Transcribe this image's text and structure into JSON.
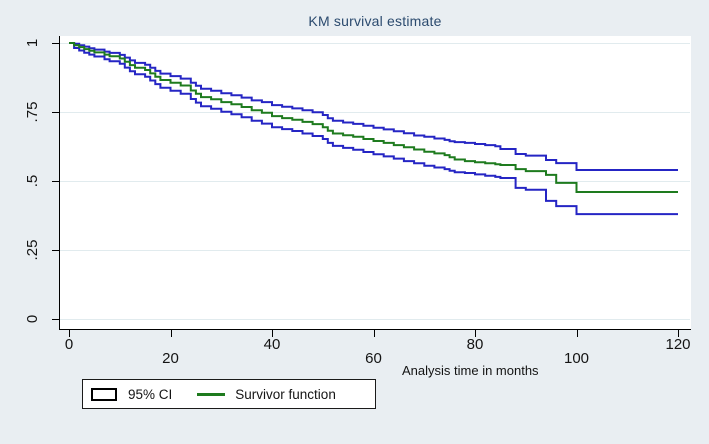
{
  "figure": {
    "background_color": "#e9eef2",
    "plot_background": "#ffffff",
    "gridline_color": "#e1ebee",
    "axis_color": "#000000",
    "title_color": "#2b4a6e"
  },
  "chart_data": {
    "type": "line",
    "subtype": "kaplan-meier-step",
    "title": "KM survival estimate",
    "xlabel": "Analysis time in months",
    "ylabel": "",
    "xlim": [
      0,
      120
    ],
    "ylim": [
      0,
      1
    ],
    "grid": true,
    "legend_position": "bottom-left",
    "x_ticks": [
      0,
      20,
      40,
      60,
      80,
      100,
      120
    ],
    "y_ticks_labels": [
      "0",
      ".25",
      ".5",
      ".75",
      "1"
    ],
    "y_tick_values": [
      0,
      0.25,
      0.5,
      0.75,
      1
    ],
    "x": [
      0,
      1,
      2,
      3,
      4,
      5,
      7,
      8,
      10,
      11,
      12,
      13,
      15,
      16,
      17,
      18,
      20,
      22,
      24,
      25,
      26,
      28,
      30,
      32,
      34,
      36,
      38,
      40,
      42,
      44,
      46,
      48,
      50,
      51,
      52,
      54,
      56,
      58,
      60,
      62,
      64,
      66,
      68,
      70,
      72,
      74,
      75,
      76,
      78,
      80,
      82,
      84,
      85,
      88,
      90,
      94,
      96,
      100,
      120
    ],
    "series": [
      {
        "name": "95% CI upper bound",
        "color": "#2525c4",
        "values": [
          1.0,
          0.997,
          0.992,
          0.987,
          0.981,
          0.976,
          0.969,
          0.964,
          0.957,
          0.947,
          0.937,
          0.928,
          0.921,
          0.91,
          0.899,
          0.889,
          0.88,
          0.871,
          0.856,
          0.845,
          0.834,
          0.827,
          0.818,
          0.811,
          0.802,
          0.792,
          0.786,
          0.775,
          0.769,
          0.763,
          0.756,
          0.749,
          0.739,
          0.727,
          0.718,
          0.712,
          0.707,
          0.7,
          0.693,
          0.687,
          0.68,
          0.673,
          0.665,
          0.66,
          0.654,
          0.649,
          0.644,
          0.641,
          0.638,
          0.634,
          0.63,
          0.626,
          0.616,
          0.598,
          0.592,
          0.576,
          0.565,
          0.54,
          0.54
        ]
      },
      {
        "name": "95% CI lower bound",
        "color": "#2525c4",
        "values": [
          1.0,
          0.982,
          0.973,
          0.965,
          0.958,
          0.951,
          0.941,
          0.934,
          0.925,
          0.911,
          0.898,
          0.887,
          0.878,
          0.864,
          0.851,
          0.838,
          0.827,
          0.816,
          0.797,
          0.784,
          0.771,
          0.762,
          0.751,
          0.742,
          0.731,
          0.718,
          0.708,
          0.695,
          0.688,
          0.681,
          0.672,
          0.663,
          0.652,
          0.638,
          0.627,
          0.62,
          0.613,
          0.605,
          0.597,
          0.589,
          0.581,
          0.572,
          0.564,
          0.555,
          0.549,
          0.543,
          0.537,
          0.532,
          0.529,
          0.524,
          0.519,
          0.515,
          0.511,
          0.475,
          0.468,
          0.428,
          0.409,
          0.38,
          0.38
        ]
      },
      {
        "name": "Survivor function",
        "color": "#1e7b1e",
        "values": [
          1.0,
          0.992,
          0.985,
          0.978,
          0.972,
          0.966,
          0.958,
          0.952,
          0.944,
          0.932,
          0.92,
          0.91,
          0.902,
          0.89,
          0.878,
          0.866,
          0.856,
          0.846,
          0.828,
          0.816,
          0.804,
          0.796,
          0.786,
          0.778,
          0.768,
          0.756,
          0.747,
          0.735,
          0.728,
          0.722,
          0.714,
          0.706,
          0.695,
          0.682,
          0.672,
          0.666,
          0.66,
          0.652,
          0.645,
          0.638,
          0.63,
          0.622,
          0.614,
          0.606,
          0.6,
          0.594,
          0.586,
          0.578,
          0.572,
          0.568,
          0.564,
          0.561,
          0.558,
          0.543,
          0.536,
          0.522,
          0.493,
          0.46,
          0.46
        ]
      }
    ]
  },
  "legend": {
    "items": [
      {
        "label": "95% CI",
        "swatch": "box-outline"
      },
      {
        "label": "Survivor function",
        "swatch": "green-line"
      }
    ]
  }
}
